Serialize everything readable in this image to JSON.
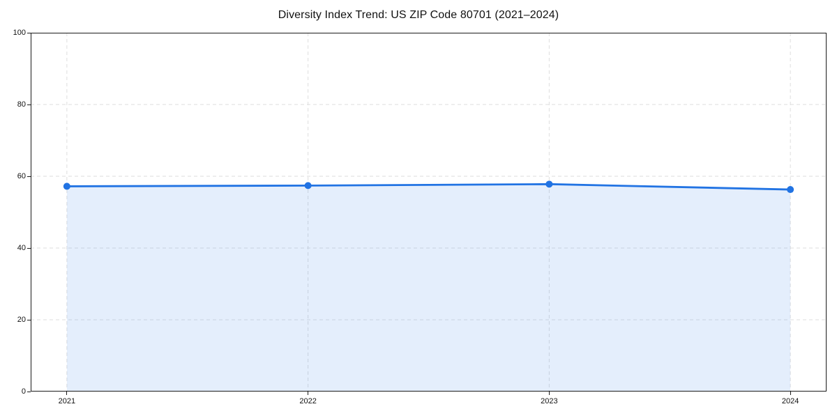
{
  "chart_data": {
    "type": "line",
    "title": "Diversity Index Trend: US ZIP Code 80701 (2021–2024)",
    "x": [
      2021,
      2022,
      2023,
      2024
    ],
    "x_tick_labels": [
      "2021",
      "2022",
      "2023",
      "2024"
    ],
    "y_ticks": [
      0,
      20,
      40,
      60,
      80,
      100
    ],
    "series": [
      {
        "name": "Diversity Index",
        "values": [
          57.2,
          57.4,
          57.8,
          56.3
        ]
      }
    ],
    "xlabel": "",
    "ylabel": "",
    "xlim": [
      2020.85,
      2024.15
    ],
    "ylim": [
      0,
      100
    ],
    "grid": "dashed-both",
    "legend_position": "none",
    "area_fill": true,
    "colors": {
      "line": "#2173e3",
      "marker": "#2173e3",
      "area": "rgba(33,115,227,0.12)",
      "gridline": "#dedede",
      "spine": "#1a1a1a",
      "text": "#111111"
    }
  }
}
